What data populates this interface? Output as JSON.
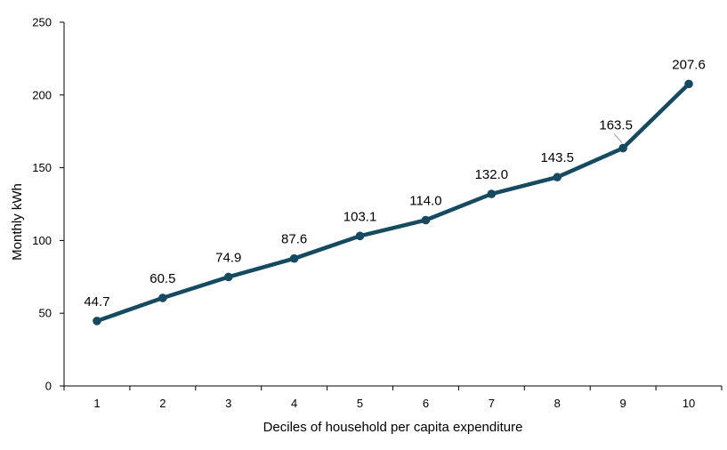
{
  "chart_data": {
    "type": "line",
    "title": "",
    "xlabel": "Deciles of household per capita expenditure",
    "ylabel": "Monthly  kWh",
    "categories": [
      "1",
      "2",
      "3",
      "4",
      "5",
      "6",
      "7",
      "8",
      "9",
      "10"
    ],
    "series": [
      {
        "values": [
          44.7,
          60.5,
          74.9,
          87.6,
          103.1,
          114.0,
          132.0,
          143.5,
          163.5,
          207.6
        ],
        "labels": [
          "44.7",
          "60.5",
          "74.9",
          "87.6",
          "103.1",
          "114.0",
          "132.0",
          "143.5",
          "163.5",
          "207.6"
        ],
        "color": "#164a60"
      }
    ],
    "ylim": [
      0,
      250
    ],
    "yticks": [
      "0",
      "50",
      "100",
      "150",
      "200",
      "250"
    ],
    "grid": false,
    "legend": "none"
  }
}
